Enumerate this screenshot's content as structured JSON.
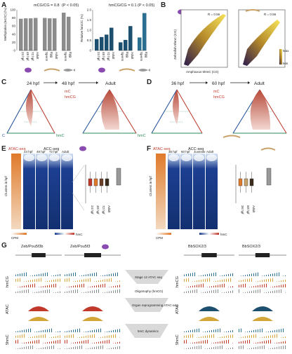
{
  "panels": {
    "A": {
      "letter": "A",
      "left_title": "mCG/CG = 0.8",
      "left_p": "(P < 0.05)",
      "right_title": "hmCG/CG = 0.1",
      "right_p": "(P < 0.05)",
      "left_ylabel": "Methylation (mC/C) (%)",
      "right_ylabel": "Relative hmC/C (%)",
      "left_ticks": [
        "100",
        "80",
        "60",
        "40",
        "20",
        "0"
      ],
      "right_ticks": [
        "2.0",
        "1.5",
        "1.0",
        "0.5",
        "0"
      ],
      "groups_left": [
        {
          "labels": [
            "24 hpf",
            "48 hpf",
            "72 hpf",
            "Adult"
          ],
          "values": [
            0.78,
            0.79,
            0.79,
            0.8
          ]
        },
        {
          "labels": [
            "Sperm",
            "Egg",
            "Adult"
          ],
          "values": [
            0.8,
            0.79,
            0.79
          ]
        },
        {
          "labels": [
            "Sperm",
            "Egg"
          ],
          "values": [
            0.93,
            0.83
          ]
        }
      ],
      "groups_right": [
        {
          "labels": [
            "24 hpf",
            "48 hpf",
            "72 hpf",
            "Adult"
          ],
          "values": [
            0.28,
            0.33,
            0.39,
            0.56
          ]
        },
        {
          "labels": [
            "Sperm",
            "Egg",
            "Adult"
          ],
          "values": [
            0.2,
            0.26,
            0.6
          ]
        },
        {
          "labels": [
            "Sperm",
            "Egg"
          ],
          "values": [
            0.32,
            0.92
          ]
        }
      ]
    },
    "B": {
      "letter": "B",
      "r_left": "R = 0.56",
      "r_right": "R = 0.56",
      "xlabel": "Amphioxus 5hmC (CG)",
      "ylabel": "Zebrafish 5hmC (CG)",
      "legend_max": "Max",
      "legend_min": "Min"
    },
    "C": {
      "letter": "C",
      "stage1": "24 hpf",
      "stage2": "48 hpf",
      "stage3": "Adult",
      "mc": "mC",
      "hmcg": "hmCG",
      "c": "C",
      "hmc": "hmC"
    },
    "D": {
      "letter": "D",
      "stage1": "36 hpf",
      "stage2": "60 hpf",
      "stage3": "Adult",
      "mc": "mC",
      "hmcg": "hmCG",
      "c": "C",
      "hmc": "hmC"
    },
    "E": {
      "letter": "E",
      "atac": "ATAC-seq",
      "acc": "ACC-seq",
      "cols": [
        "48 hpf",
        "24 hpf",
        "48 hpf",
        "72 hpf",
        "Adult"
      ],
      "ylabel": "Clusters in hpf",
      "cpm": "CPM",
      "hmc": "hmC",
      "box_labels": [
        "24 hpf",
        "48 hpf",
        "72 hpf",
        "Adult"
      ],
      "scale_low": "0",
      "scale_high": "20"
    },
    "F": {
      "letter": "F",
      "atac": "ATAC-seq",
      "acc": "ACC-seq",
      "cols": [
        "36 hpf",
        "36 hpf",
        "60 hpf",
        "Juvenile",
        "Adult"
      ],
      "ylabel": "Clusters in hpf",
      "cpm": "CPM",
      "hmc": "hmC",
      "box_labels": [
        "36 hpf",
        "60 hpf",
        "Adult"
      ],
      "scale_low": "0",
      "scale_high": "15"
    },
    "G": {
      "letter": "G",
      "genes": [
        "Zeb/Pou5f3b",
        "Zeb/Pou5f3",
        "BbSOX2/3",
        "BbSOX2/3"
      ],
      "left_tracks": [
        "hmCG",
        "ATAC",
        "5hmC"
      ],
      "right_tracks": [
        "hmCG",
        "ATAC",
        "5hmC"
      ],
      "stages_left": [
        "24 hpf",
        "48 hpf",
        "72 hpf",
        "Adult"
      ],
      "stages_right": [
        "36 hpf",
        "60 hpf",
        "Adult"
      ],
      "centre": [
        "Stage 12 ATAC seq",
        "Oligotrophy (hmCG)",
        "Organ reprogramming ATAC-seq",
        "5mC dynamics"
      ]
    }
  }
}
